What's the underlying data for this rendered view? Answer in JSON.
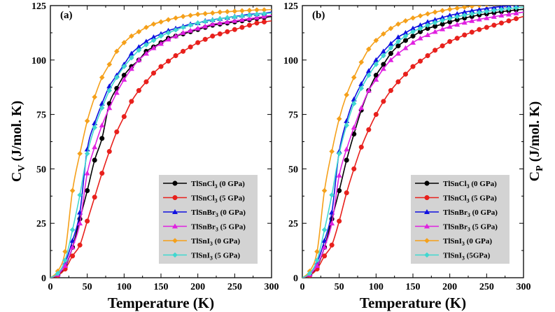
{
  "figure": {
    "ylabel_left": "C",
    "ylabel_left_sub": "V",
    "ylabel_left_unit": " (J/mol. K)",
    "ylabel_right": "C",
    "ylabel_right_sub": "P",
    "ylabel_right_unit": " (J/mol. K)"
  },
  "colors": {
    "TlSnCl3_0": "#000000",
    "TlSnCl3_5": "#e8201c",
    "TlSnBr3_0": "#1010e0",
    "TlSnBr3_5": "#e020e0",
    "TlSnI3_0": "#f5a01a",
    "TlSnI3_5": "#40d8d0",
    "legend_bg": "#d3d3d3"
  },
  "chart_data": [
    {
      "type": "line",
      "panel_label": "(a)",
      "xlabel": "Temperature (K)",
      "ylabel": "C_V (J/mol. K)",
      "xlim": [
        0,
        300
      ],
      "ylim": [
        0,
        125
      ],
      "xticks": [
        "0",
        "50",
        "100",
        "150",
        "200",
        "250",
        "300"
      ],
      "yticks": [
        "0",
        "25",
        "50",
        "75",
        "100",
        "125"
      ],
      "x": [
        0,
        10,
        20,
        30,
        40,
        50,
        60,
        70,
        80,
        90,
        100,
        110,
        120,
        130,
        140,
        150,
        160,
        170,
        180,
        190,
        200,
        210,
        220,
        230,
        240,
        250,
        260,
        270,
        280,
        290,
        300
      ],
      "series": [
        {
          "name": "TlSnCl3 (0 GPa)",
          "legend_main": "TlSnCl",
          "legend_sub": "3",
          "legend_tail": " (0 GPa)",
          "color_key": "TlSnCl3_0",
          "values": [
            0,
            1.5,
            5,
            14,
            27,
            40,
            54,
            64,
            80,
            87,
            93,
            97,
            100,
            104,
            106,
            108,
            110,
            111,
            112,
            113,
            114,
            115,
            116,
            116.5,
            117,
            117.5,
            118,
            118.5,
            119,
            119.5,
            120
          ]
        },
        {
          "name": "TlSnCl3 (5 GPa)",
          "legend_main": "TlSnCl",
          "legend_sub": "3",
          "legend_tail": " (5 GPa)",
          "color_key": "TlSnCl3_5",
          "values": [
            0,
            1,
            4,
            10,
            15,
            26,
            37,
            48,
            58,
            67,
            74,
            81,
            86,
            90,
            94,
            97,
            99.5,
            102,
            104,
            106,
            108,
            109.5,
            111,
            112,
            113,
            114,
            115,
            116,
            117,
            117.5,
            118
          ]
        },
        {
          "name": "TlSnBr3 (0 GPa)",
          "legend_main": "TlSnBr",
          "legend_sub": "3",
          "legend_tail": " (0 GPa)",
          "color_key": "TlSnBr3_0",
          "values": [
            0,
            2,
            7,
            17,
            30,
            59,
            71,
            80,
            88,
            93,
            98,
            103,
            106,
            108.5,
            110.5,
            112,
            113.5,
            114.5,
            115.5,
            116.5,
            117,
            118,
            118.5,
            119,
            119.5,
            120,
            120.5,
            121,
            121.2,
            121.5,
            122
          ]
        },
        {
          "name": "TlSnBr3 (5 GPa)",
          "legend_main": "TlSnBr",
          "legend_sub": "3",
          "legend_tail": " (5 GPa)",
          "color_key": "TlSnBr3_5",
          "values": [
            0,
            1.5,
            5.5,
            14,
            25,
            48,
            60,
            70,
            78,
            85,
            91,
            96,
            100,
            103,
            105.5,
            107.5,
            109.5,
            111,
            112.5,
            113.5,
            114.5,
            115.5,
            116.5,
            117,
            117.5,
            118,
            118.5,
            119,
            119.5,
            120,
            120.5
          ]
        },
        {
          "name": "TlSnI3 (0 GPa)",
          "legend_main": "TlSnI",
          "legend_sub": "3",
          "legend_tail": "    (0 GPa)",
          "color_key": "TlSnI3_0",
          "values": [
            0,
            3,
            12,
            40,
            57,
            72,
            83,
            92,
            98,
            104,
            108,
            111,
            113,
            115,
            116.5,
            117.5,
            118.5,
            119.3,
            120,
            120.5,
            121,
            121.3,
            121.6,
            122,
            122.2,
            122.4,
            122.6,
            122.8,
            123,
            123,
            123.2
          ]
        },
        {
          "name": "TlSnI3 (5 GPa)",
          "legend_main": "TlSnI",
          "legend_sub": "3",
          "legend_tail": "    (5 GPa)",
          "color_key": "TlSnI3_5",
          "values": [
            0,
            2,
            8,
            22,
            38,
            57,
            69,
            78,
            86,
            92,
            97,
            101,
            104.5,
            107,
            109,
            111,
            112.5,
            113.8,
            115,
            116,
            117,
            117.7,
            118.3,
            118.9,
            119.4,
            119.8,
            120.2,
            120.6,
            121,
            121.3,
            121.6
          ]
        }
      ]
    },
    {
      "type": "line",
      "panel_label": "(b)",
      "xlabel": "Temperature (K)",
      "ylabel": "C_P (J/mol. K)",
      "xlim": [
        0,
        300
      ],
      "ylim": [
        0,
        125
      ],
      "xticks": [
        "0",
        "50",
        "100",
        "150",
        "200",
        "250",
        "300"
      ],
      "yticks": [
        "0",
        "25",
        "50",
        "75",
        "100",
        "125"
      ],
      "x": [
        0,
        10,
        20,
        30,
        40,
        50,
        60,
        70,
        80,
        90,
        100,
        110,
        120,
        130,
        140,
        150,
        160,
        170,
        180,
        190,
        200,
        210,
        220,
        230,
        240,
        250,
        260,
        270,
        280,
        290,
        300
      ],
      "series": [
        {
          "name": "TlSnCl3 (0 GPa)",
          "legend_main": "TlSnCl",
          "legend_sub": "3",
          "legend_tail": " (0 GPa)",
          "color_key": "TlSnCl3_0",
          "values": [
            0,
            1.5,
            5,
            14,
            27,
            40,
            54,
            66,
            77,
            86,
            93,
            98,
            103,
            106.5,
            109,
            111,
            113,
            114.5,
            115.5,
            116.5,
            117.5,
            118.5,
            119.3,
            120,
            120.7,
            121.2,
            121.7,
            122.2,
            122.6,
            123,
            123.3
          ]
        },
        {
          "name": "TlSnCl3 (5 GPa)",
          "legend_main": "TlSnCl",
          "legend_sub": "3",
          "legend_tail": " (5 GPa)",
          "color_key": "TlSnCl3_5",
          "values": [
            0,
            1,
            4,
            10,
            15,
            26,
            39,
            50,
            60,
            68,
            75,
            81,
            86,
            90,
            93.5,
            97,
            99.5,
            102,
            104.5,
            106.5,
            108.5,
            110,
            111.5,
            112.8,
            114,
            115,
            116,
            117,
            118,
            119,
            120
          ]
        },
        {
          "name": "TlSnBr3 (0 GPa)",
          "legend_main": "TlSnBr",
          "legend_sub": "3",
          "legend_tail": " (0 GPa)",
          "color_key": "TlSnBr3_0",
          "values": [
            0,
            2,
            7,
            17,
            30,
            58,
            72,
            82,
            89,
            95,
            100,
            104,
            107.5,
            110.5,
            112.5,
            114.5,
            116,
            117.5,
            118.5,
            119.5,
            120.5,
            121.2,
            122,
            122.6,
            123.2,
            123.7,
            124.2,
            124.6,
            125,
            125.3,
            125.6
          ]
        },
        {
          "name": "TlSnBr3 (5 GPa)",
          "legend_main": "TlSnBr",
          "legend_sub": "3",
          "legend_tail": " (5 GPa)",
          "color_key": "TlSnBr3_5",
          "values": [
            0,
            1.5,
            5.5,
            14,
            25,
            47,
            59,
            69,
            78,
            86,
            91,
            96,
            100,
            103,
            105.5,
            108,
            110,
            111.5,
            113,
            114.2,
            115.3,
            116.3,
            117.2,
            118,
            118.7,
            119.3,
            119.9,
            120.5,
            121,
            121.5,
            122
          ]
        },
        {
          "name": "TlSnI3 (0 GPa)",
          "legend_main": "TlSnI",
          "legend_sub": "3",
          "legend_tail": "    (0 GPa)",
          "color_key": "TlSnI3_0",
          "values": [
            0,
            3,
            12,
            40,
            58,
            73,
            84,
            92,
            99,
            105,
            109,
            112,
            114.5,
            116.5,
            118,
            119.3,
            120.3,
            121.2,
            122,
            122.7,
            123.3,
            123.8,
            124.3,
            124.7,
            125.1,
            125.4,
            125.7,
            126,
            126.3,
            126.6,
            126.9
          ]
        },
        {
          "name": "TlSnI3 (5GPa)",
          "legend_main": "TlSnI",
          "legend_sub": "3",
          "legend_tail": "    (5GPa)",
          "color_key": "TlSnI3_5",
          "values": [
            0,
            2,
            8,
            22,
            38,
            57,
            70,
            80,
            87,
            93,
            98,
            102,
            105.5,
            108.5,
            111,
            113,
            114.5,
            116,
            117.2,
            118.2,
            119.1,
            119.9,
            120.6,
            121.2,
            121.8,
            122.3,
            122.8,
            123.2,
            123.6,
            124,
            124.3
          ]
        }
      ]
    }
  ]
}
